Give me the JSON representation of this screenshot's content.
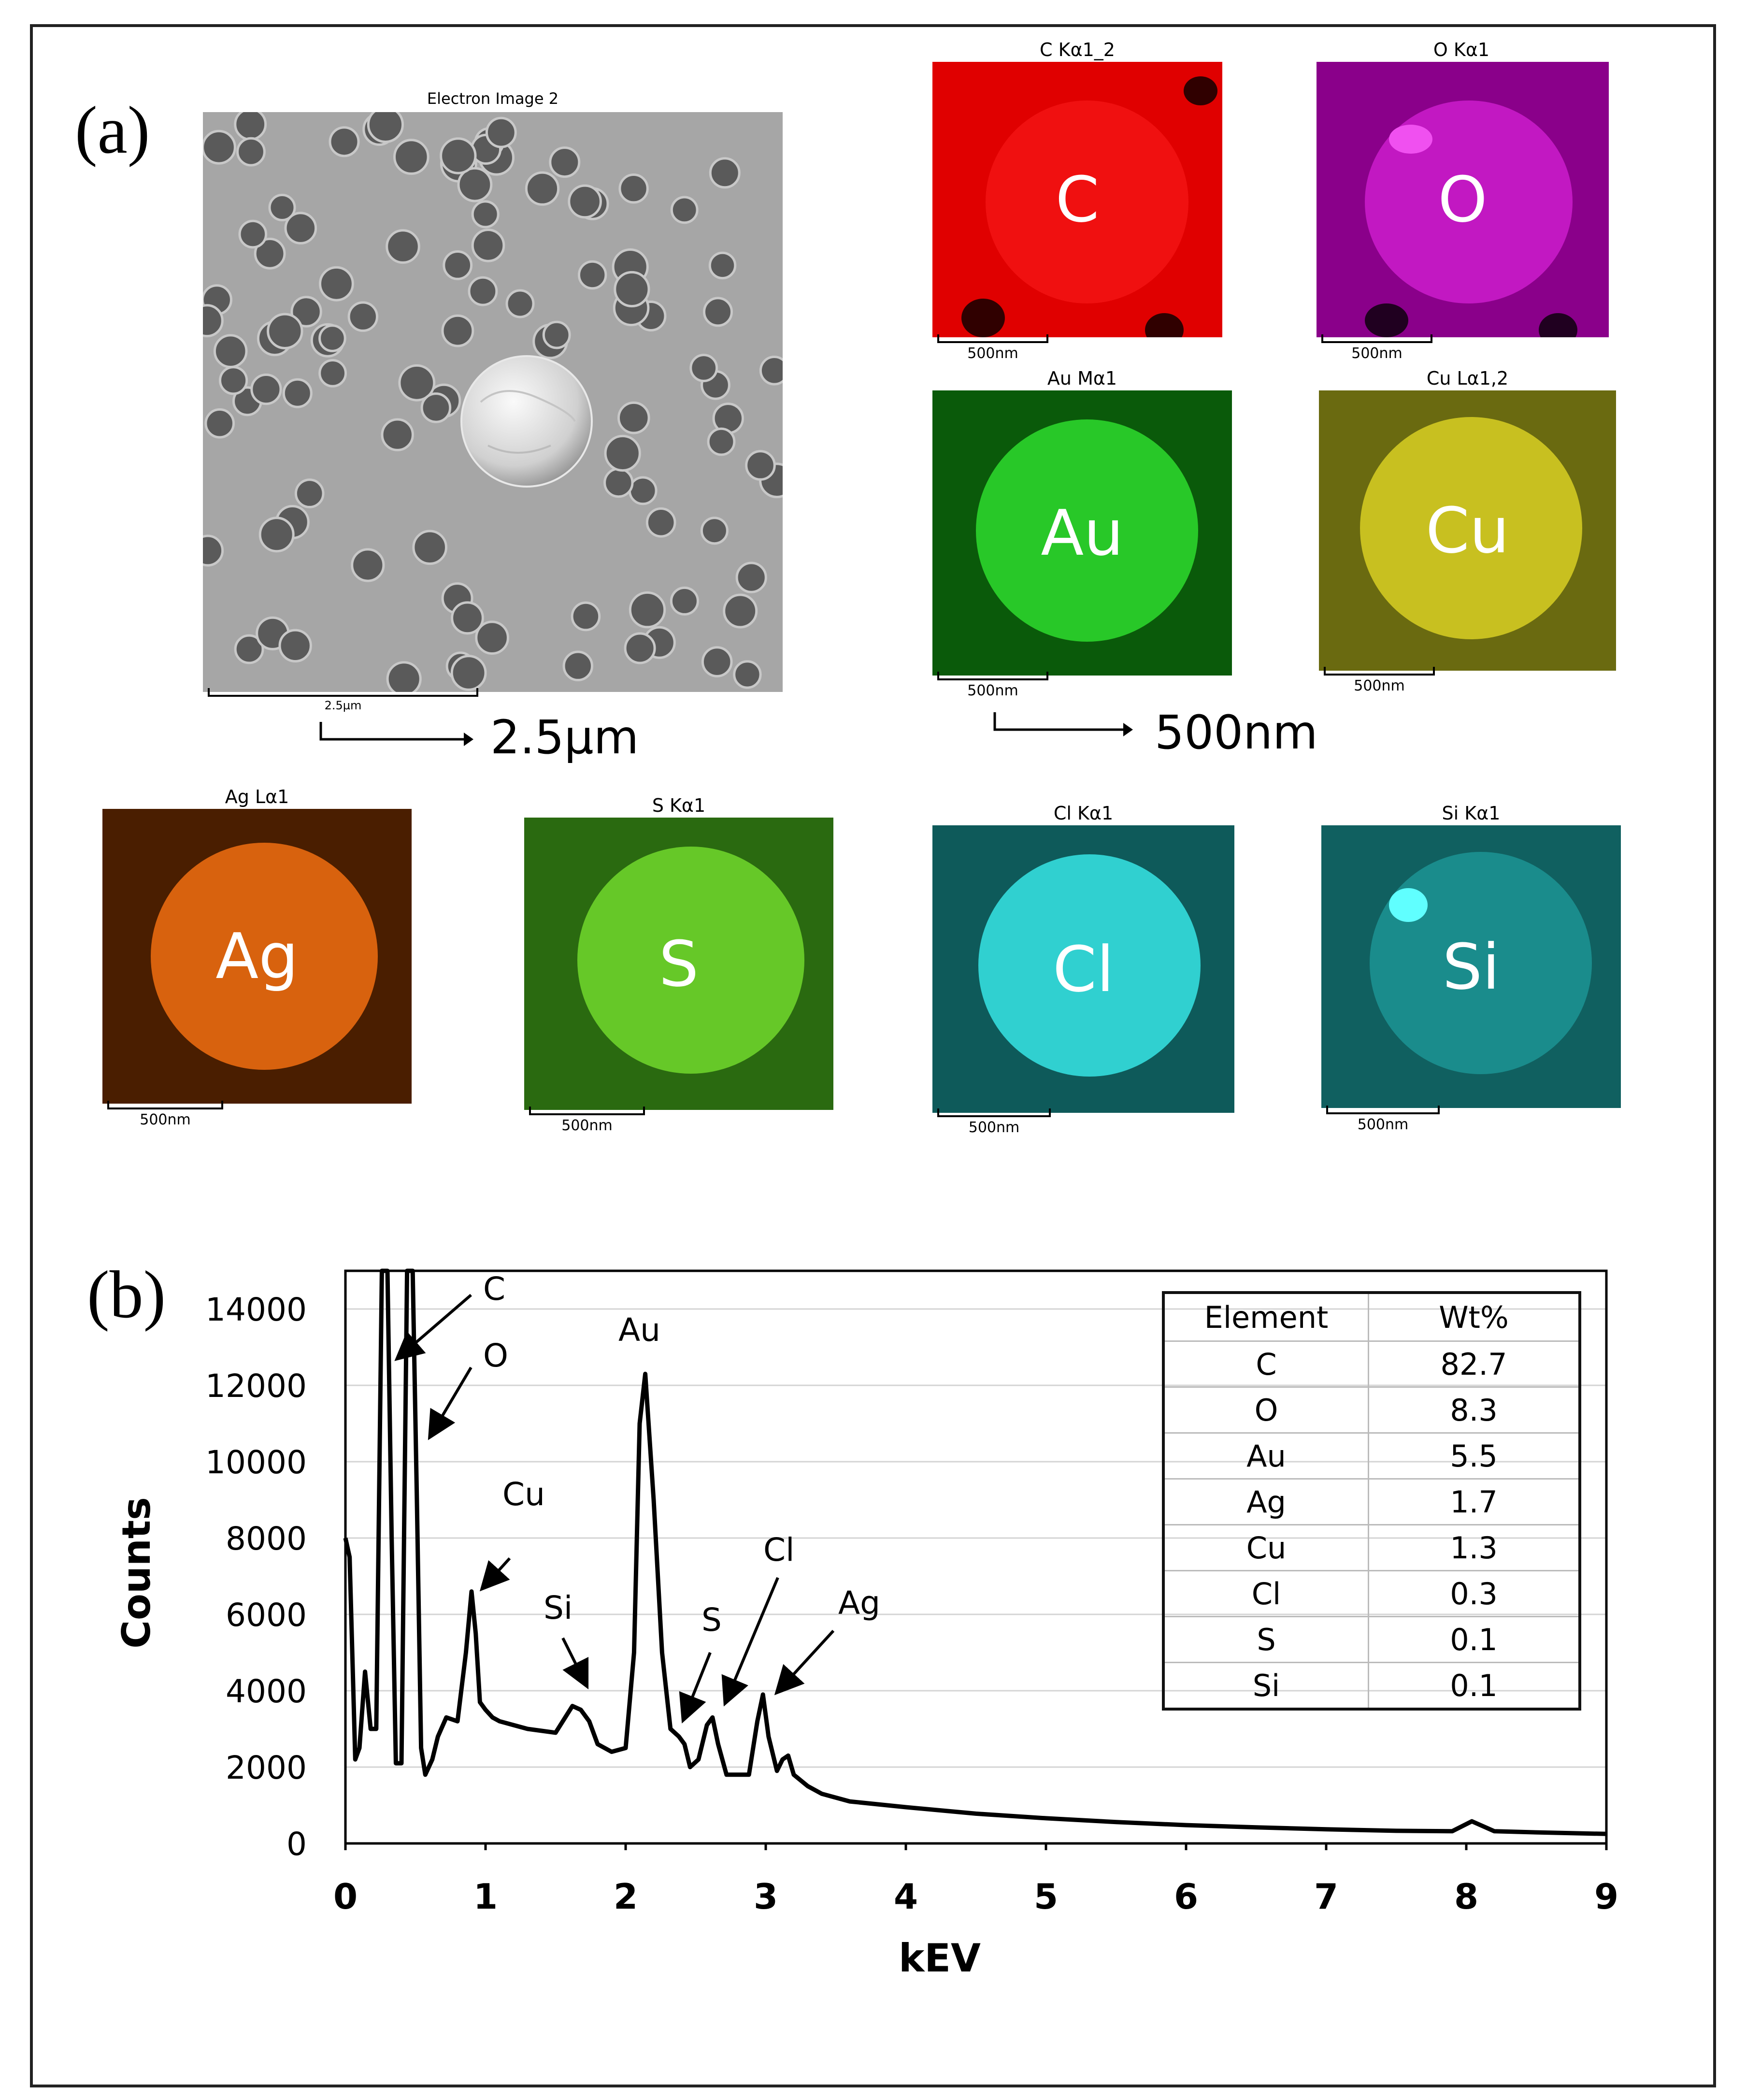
{
  "panel_a": {
    "label": "(a)",
    "electron_image": {
      "title": "Electron Image 2",
      "scalebar_text": "2.5µm"
    },
    "electron_scale_label": "2.5µm",
    "maps_scale_label": "500nm",
    "maps": [
      {
        "title": "C Kα1_2",
        "letter": "C",
        "scalebar_text": "500nm",
        "color": "#ff0000"
      },
      {
        "title": "O Kα1",
        "letter": "O",
        "scalebar_text": "500nm",
        "color": "#c000c0"
      },
      {
        "title": "Au Mα1",
        "letter": "Au",
        "scalebar_text": "500nm",
        "color": "#22cc22"
      },
      {
        "title": "Cu Lα1,2",
        "letter": "Cu",
        "scalebar_text": "500nm",
        "color": "#d8d000"
      },
      {
        "title": "Ag Lα1",
        "letter": "Ag",
        "scalebar_text": "500nm",
        "color": "#e06a10"
      },
      {
        "title": "S Kα1",
        "letter": "S",
        "scalebar_text": "500nm",
        "color": "#66cc22"
      },
      {
        "title": "Cl Kα1",
        "letter": "Cl",
        "scalebar_text": "500nm",
        "color": "#22cccc"
      },
      {
        "title": "Si Kα1",
        "letter": "Si",
        "scalebar_text": "500nm",
        "color": "#1fb5b5"
      }
    ]
  },
  "panel_b": {
    "label": "(b)",
    "peak_labels": [
      "C",
      "O",
      "Cu",
      "Si",
      "Au",
      "S",
      "Cl",
      "Ag"
    ],
    "table": {
      "headers": [
        "Element",
        "Wt%"
      ],
      "rows": [
        [
          "C",
          "82.7"
        ],
        [
          "O",
          "8.3"
        ],
        [
          "Au",
          "5.5"
        ],
        [
          "Ag",
          "1.7"
        ],
        [
          "Cu",
          "1.3"
        ],
        [
          "Cl",
          "0.3"
        ],
        [
          "S",
          "0.1"
        ],
        [
          "Si",
          "0.1"
        ]
      ]
    }
  },
  "chart_data": {
    "type": "line",
    "title": "",
    "xlabel": "kEV",
    "ylabel": "Counts",
    "xlim": [
      0,
      9
    ],
    "ylim": [
      0,
      15000
    ],
    "xticks": [
      0,
      1,
      2,
      3,
      4,
      5,
      6,
      7,
      8,
      9
    ],
    "yticks": [
      0,
      2000,
      4000,
      6000,
      8000,
      10000,
      12000,
      14000
    ],
    "grid": "horizontal",
    "series": [
      {
        "x": [
          0,
          0.03,
          0.07,
          0.1,
          0.14,
          0.18,
          0.22,
          0.26,
          0.3,
          0.33,
          0.36,
          0.4,
          0.44,
          0.48,
          0.51,
          0.54,
          0.57,
          0.62,
          0.66,
          0.72,
          0.8,
          0.86,
          0.9,
          0.93,
          0.96,
          1.0,
          1.05,
          1.1,
          1.2,
          1.3,
          1.5,
          1.62,
          1.68,
          1.74,
          1.8,
          1.9,
          2.0,
          2.06,
          2.1,
          2.14,
          2.2,
          2.26,
          2.32,
          2.38,
          2.42,
          2.46,
          2.52,
          2.58,
          2.62,
          2.66,
          2.72,
          2.8,
          2.88,
          2.94,
          2.98,
          3.02,
          3.08,
          3.12,
          3.16,
          3.2,
          3.3,
          3.4,
          3.6,
          4.0,
          4.5,
          5.0,
          5.5,
          6.0,
          6.5,
          7.0,
          7.5,
          7.9,
          8.04,
          8.2,
          8.5,
          9.0
        ],
        "y": [
          8000,
          7500,
          2200,
          2500,
          4500,
          3000,
          3000,
          15000,
          15000,
          8000,
          2100,
          2100,
          15000,
          15000,
          9000,
          2500,
          1800,
          2200,
          2800,
          3300,
          3200,
          5000,
          6600,
          5500,
          3700,
          3500,
          3300,
          3200,
          3100,
          3000,
          2900,
          3600,
          3500,
          3200,
          2600,
          2400,
          2500,
          5000,
          11000,
          12300,
          9000,
          5000,
          3000,
          2800,
          2600,
          2000,
          2200,
          3100,
          3300,
          2600,
          1800,
          1800,
          1800,
          3200,
          3900,
          2800,
          1900,
          2200,
          2300,
          1800,
          1500,
          1300,
          1100,
          950,
          780,
          660,
          560,
          480,
          420,
          370,
          330,
          320,
          580,
          320,
          290,
          250
        ]
      }
    ]
  }
}
